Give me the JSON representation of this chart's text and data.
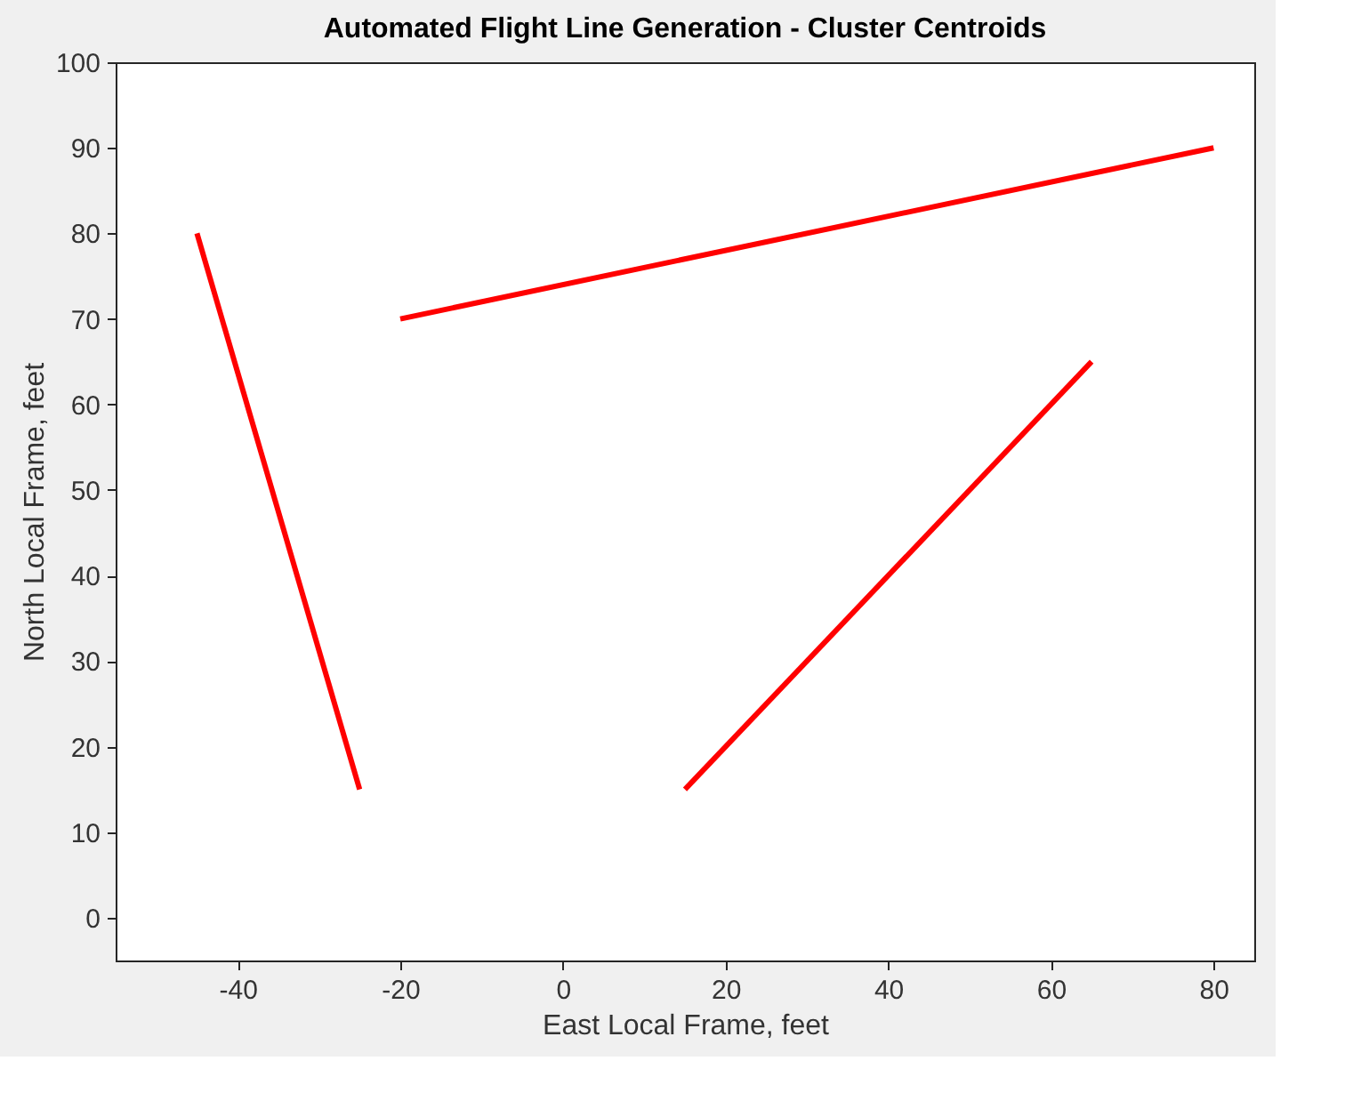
{
  "chart_data": {
    "type": "line",
    "title": "Automated Flight Line Generation - Cluster Centroids",
    "xlabel": "East Local Frame, feet",
    "ylabel": "North Local Frame, feet",
    "series": [
      {
        "color": "#ff0000",
        "x": [
          -45,
          -25
        ],
        "values": [
          80,
          15
        ]
      },
      {
        "color": "#ff0000",
        "x": [
          -20,
          80
        ],
        "values": [
          70,
          90
        ]
      },
      {
        "color": "#ff0000",
        "x": [
          15,
          65
        ],
        "values": [
          15,
          65
        ]
      }
    ],
    "xlim": [
      -55,
      85
    ],
    "xticks": [
      -40,
      -20,
      0,
      20,
      40,
      60,
      80
    ],
    "ylim": [
      -5,
      100
    ],
    "yticks": [
      0,
      10,
      20,
      30,
      40,
      50,
      60,
      70,
      80,
      90,
      100
    ],
    "grid": false,
    "marker": "none",
    "line_style": "solid"
  }
}
